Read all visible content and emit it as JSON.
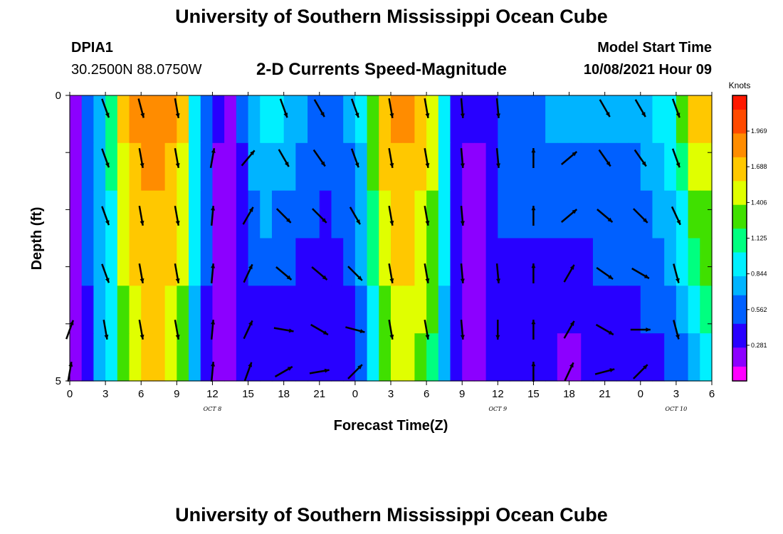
{
  "header": {
    "title": "University of Southern Mississippi Ocean Cube",
    "station": "DPIA1",
    "coords": "30.2500N  88.0750W",
    "subtitle": "2-D Currents Speed-Magnitude",
    "model_label": "Model Start Time",
    "model_time": "10/08/2021 Hour 09"
  },
  "footer": {
    "title": "University of Southern Mississippi Ocean Cube"
  },
  "chart_data": {
    "type": "heatmap",
    "title": "2-D Currents Speed-Magnitude",
    "xlabel": "Forecast Time(Z)",
    "ylabel": "Depth (ft)",
    "x_tick_labels": [
      "0",
      "3",
      "6",
      "9",
      "12",
      "15",
      "18",
      "21",
      "0",
      "3",
      "6",
      "9",
      "12",
      "15",
      "18",
      "21",
      "0",
      "3",
      "6"
    ],
    "date_labels": [
      {
        "label": "OCT 8",
        "tick_index": 4
      },
      {
        "label": "OCT 9",
        "tick_index": 12
      },
      {
        "label": "OCT 10",
        "tick_index": 17
      }
    ],
    "y_tick_labels": [
      "0",
      "5"
    ],
    "ylim": [
      0,
      5
    ],
    "depth_rows": 5,
    "hours_total": 54,
    "colorbar": {
      "unit": "Knots",
      "labels": [
        "1.969",
        "1.688",
        "1.406",
        "1.125",
        "0.844",
        "0.562",
        "0.281"
      ],
      "range": [
        0,
        2.25
      ]
    },
    "speed_profile_knots": {
      "hours": [
        0,
        1,
        2,
        3,
        4,
        5,
        6,
        7,
        8,
        9,
        10,
        11,
        12,
        13,
        14,
        15,
        16,
        17,
        18,
        19,
        20,
        21,
        22,
        23,
        24,
        25,
        26,
        27,
        28,
        29,
        30,
        31,
        32,
        33,
        34,
        35,
        36,
        37,
        38,
        39,
        40,
        41,
        42,
        43,
        44,
        45,
        46,
        47,
        48,
        49,
        50,
        51,
        52,
        53,
        54
      ],
      "surface": [
        0.25,
        0.5,
        0.8,
        1.1,
        1.6,
        1.8,
        1.9,
        1.9,
        1.8,
        1.6,
        1.0,
        0.6,
        0.3,
        0.25,
        0.5,
        0.8,
        0.9,
        0.85,
        0.8,
        0.7,
        0.6,
        0.55,
        0.6,
        0.7,
        0.9,
        1.3,
        1.7,
        1.8,
        1.8,
        1.7,
        1.5,
        1.0,
        0.4,
        0.3,
        0.3,
        0.45,
        0.55,
        0.6,
        0.6,
        0.65,
        0.7,
        0.7,
        0.7,
        0.7,
        0.7,
        0.7,
        0.7,
        0.7,
        0.75,
        0.85,
        1.0,
        1.3,
        1.6,
        1.7,
        1.7
      ],
      "bottom": [
        0.25,
        0.45,
        0.7,
        0.9,
        1.3,
        1.5,
        1.6,
        1.6,
        1.5,
        1.3,
        0.8,
        0.4,
        0.2,
        0.2,
        0.3,
        0.35,
        0.35,
        0.3,
        0.3,
        0.3,
        0.3,
        0.3,
        0.3,
        0.35,
        0.5,
        0.9,
        1.3,
        1.5,
        1.5,
        1.4,
        1.2,
        0.8,
        0.3,
        0.2,
        0.2,
        0.3,
        0.35,
        0.35,
        0.3,
        0.3,
        0.3,
        0.25,
        0.25,
        0.3,
        0.35,
        0.4,
        0.4,
        0.4,
        0.4,
        0.45,
        0.5,
        0.6,
        0.8,
        0.9,
        1.0
      ]
    },
    "vectors": [
      {
        "hour": 0,
        "dir_deg": [
          null,
          null,
          null,
          null,
          20,
          10
        ]
      },
      {
        "hour": 3,
        "dir_deg": [
          160,
          160,
          160,
          160,
          170,
          null
        ]
      },
      {
        "hour": 6,
        "dir_deg": [
          165,
          170,
          170,
          170,
          170,
          null
        ]
      },
      {
        "hour": 9,
        "dir_deg": [
          170,
          170,
          170,
          170,
          170,
          null
        ]
      },
      {
        "hour": 12,
        "dir_deg": [
          null,
          10,
          5,
          5,
          5,
          5
        ]
      },
      {
        "hour": 15,
        "dir_deg": [
          null,
          40,
          30,
          25,
          25,
          20
        ]
      },
      {
        "hour": 18,
        "dir_deg": [
          160,
          150,
          135,
          130,
          100,
          60
        ]
      },
      {
        "hour": 21,
        "dir_deg": [
          150,
          145,
          135,
          130,
          120,
          80
        ]
      },
      {
        "hour": 24,
        "dir_deg": [
          160,
          160,
          150,
          135,
          105,
          45
        ]
      },
      {
        "hour": 27,
        "dir_deg": [
          170,
          170,
          170,
          170,
          170,
          null
        ]
      },
      {
        "hour": 30,
        "dir_deg": [
          170,
          170,
          170,
          170,
          170,
          null
        ]
      },
      {
        "hour": 33,
        "dir_deg": [
          175,
          175,
          175,
          175,
          175,
          null
        ]
      },
      {
        "hour": 36,
        "dir_deg": [
          175,
          175,
          null,
          175,
          180,
          null
        ]
      },
      {
        "hour": 39,
        "dir_deg": [
          null,
          0,
          0,
          0,
          0,
          0
        ]
      },
      {
        "hour": 42,
        "dir_deg": [
          null,
          50,
          50,
          30,
          30,
          25
        ]
      },
      {
        "hour": 45,
        "dir_deg": [
          150,
          145,
          130,
          125,
          120,
          75
        ]
      },
      {
        "hour": 48,
        "dir_deg": [
          150,
          145,
          135,
          120,
          90,
          45
        ]
      },
      {
        "hour": 51,
        "dir_deg": [
          160,
          160,
          155,
          165,
          165,
          null
        ]
      }
    ],
    "speed_colors": [
      "#ff00ff",
      "#8c00ff",
      "#2800ff",
      "#0060ff",
      "#00b4ff",
      "#00f0ff",
      "#00ff80",
      "#40e000",
      "#e0ff00",
      "#ffc800",
      "#ff8c00",
      "#ff4a00",
      "#ff1800"
    ]
  }
}
